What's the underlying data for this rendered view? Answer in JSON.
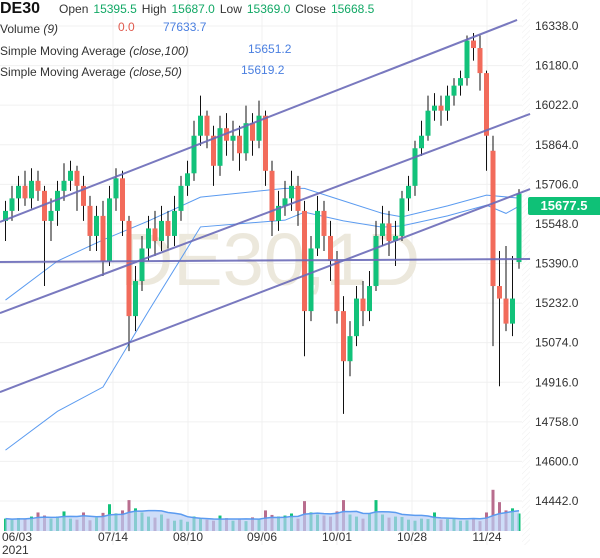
{
  "header": {
    "symbol": "DE30",
    "open_label": "Open",
    "open": "15395.5",
    "high_label": "High",
    "high": "15687.0",
    "low_label": "Low",
    "low": "15369.0",
    "close_label": "Close",
    "close": "15668.5",
    "volume_label": "Volume",
    "volume_param": "(9)",
    "volume_value": "0.0",
    "volume_ma": "77633.7",
    "sma100_label": "Simple Moving Average",
    "sma100_param": "(close,100)",
    "sma100_value": "15651.2",
    "sma50_label": "Simple Moving Average",
    "sma50_param": "(close,50)",
    "sma50_value": "15619.2"
  },
  "watermark": "DE30,1D",
  "current_price": "15677.5",
  "colors": {
    "up": "#12c27a",
    "down": "#f26b5b",
    "vol_down": "#b86d8e",
    "sma": "#5b9bf0",
    "trendline": "#6a6ab8",
    "vol_ma_fill": "#b9cff5",
    "price_tag": "#0fc177"
  },
  "chart_data": {
    "type": "candlestick",
    "ylim": [
      14442,
      16338
    ],
    "yticks": [
      "16338.0",
      "16180.0",
      "16022.0",
      "15864.0",
      "15706.0",
      "15548.0",
      "15390.0",
      "15232.0",
      "15074.0",
      "14916.0",
      "14758.0",
      "14600.0",
      "14442.0"
    ],
    "xticks": [
      "06/03",
      "07/14",
      "08/10",
      "09/06",
      "10/01",
      "10/28",
      "11/24"
    ],
    "xtick_year": "2021",
    "grid": true,
    "ohlc": [
      [
        15560,
        15640,
        15480,
        15600
      ],
      [
        15600,
        15700,
        15560,
        15650
      ],
      [
        15650,
        15740,
        15600,
        15700
      ],
      [
        15700,
        15760,
        15620,
        15650
      ],
      [
        15650,
        15770,
        15610,
        15720
      ],
      [
        15720,
        15760,
        15640,
        15680
      ],
      [
        15680,
        15700,
        15300,
        15560
      ],
      [
        15560,
        15650,
        15480,
        15600
      ],
      [
        15600,
        15720,
        15540,
        15680
      ],
      [
        15680,
        15790,
        15640,
        15720
      ],
      [
        15720,
        15800,
        15680,
        15760
      ],
      [
        15760,
        15780,
        15600,
        15700
      ],
      [
        15700,
        15740,
        15560,
        15620
      ],
      [
        15620,
        15660,
        15440,
        15500
      ],
      [
        15500,
        15620,
        15440,
        15580
      ],
      [
        15580,
        15640,
        15340,
        15400
      ],
      [
        15400,
        15700,
        15380,
        15650
      ],
      [
        15650,
        15770,
        15600,
        15730
      ],
      [
        15730,
        15760,
        15500,
        15560
      ],
      [
        15560,
        15580,
        15040,
        15180
      ],
      [
        15180,
        15380,
        15120,
        15320
      ],
      [
        15320,
        15500,
        15280,
        15450
      ],
      [
        15450,
        15580,
        15400,
        15530
      ],
      [
        15530,
        15600,
        15420,
        15480
      ],
      [
        15480,
        15620,
        15440,
        15560
      ],
      [
        15560,
        15600,
        15450,
        15500
      ],
      [
        15500,
        15660,
        15460,
        15600
      ],
      [
        15600,
        15740,
        15560,
        15700
      ],
      [
        15700,
        15800,
        15660,
        15750
      ],
      [
        15750,
        15960,
        15720,
        15900
      ],
      [
        15900,
        16060,
        15860,
        15980
      ],
      [
        15980,
        16000,
        15850,
        15900
      ],
      [
        15900,
        15940,
        15700,
        15780
      ],
      [
        15780,
        15980,
        15740,
        15930
      ],
      [
        15930,
        15990,
        15820,
        15880
      ],
      [
        15880,
        15960,
        15800,
        15900
      ],
      [
        15900,
        15940,
        15760,
        15830
      ],
      [
        15830,
        16020,
        15800,
        15950
      ],
      [
        15950,
        15990,
        15820,
        15880
      ],
      [
        15880,
        16040,
        15850,
        15980
      ],
      [
        15980,
        16000,
        15700,
        15760
      ],
      [
        15760,
        15800,
        15500,
        15560
      ],
      [
        15560,
        15680,
        15520,
        15620
      ],
      [
        15620,
        15720,
        15580,
        15650
      ],
      [
        15650,
        15760,
        15600,
        15700
      ],
      [
        15700,
        15740,
        15540,
        15600
      ],
      [
        15600,
        15640,
        15020,
        15200
      ],
      [
        15200,
        15500,
        15160,
        15450
      ],
      [
        15450,
        15660,
        15420,
        15600
      ],
      [
        15600,
        15640,
        15440,
        15500
      ],
      [
        15500,
        15560,
        15320,
        15400
      ],
      [
        15400,
        15440,
        15150,
        15200
      ],
      [
        15200,
        15260,
        14790,
        15000
      ],
      [
        15000,
        15160,
        14940,
        15100
      ],
      [
        15100,
        15300,
        15060,
        15250
      ],
      [
        15250,
        15320,
        15140,
        15200
      ],
      [
        15200,
        15360,
        15160,
        15300
      ],
      [
        15300,
        15560,
        15280,
        15500
      ],
      [
        15500,
        15620,
        15460,
        15550
      ],
      [
        15550,
        15600,
        15420,
        15480
      ],
      [
        15480,
        15560,
        15380,
        15500
      ],
      [
        15500,
        15680,
        15480,
        15650
      ],
      [
        15650,
        15740,
        15600,
        15700
      ],
      [
        15700,
        15880,
        15660,
        15850
      ],
      [
        15850,
        15960,
        15820,
        15900
      ],
      [
        15900,
        16060,
        15880,
        16000
      ],
      [
        16000,
        16070,
        15960,
        16020
      ],
      [
        16020,
        16060,
        15940,
        16000
      ],
      [
        16000,
        16100,
        15960,
        16060
      ],
      [
        16060,
        16130,
        16020,
        16100
      ],
      [
        16100,
        16160,
        16060,
        16130
      ],
      [
        16130,
        16300,
        16100,
        16280
      ],
      [
        16280,
        16310,
        16200,
        16250
      ],
      [
        16250,
        16300,
        16080,
        16150
      ],
      [
        16150,
        16160,
        15760,
        15900
      ],
      [
        15840,
        15900,
        15060,
        15300
      ],
      [
        15300,
        15440,
        14900,
        15250
      ],
      [
        15250,
        15460,
        15120,
        15150
      ],
      [
        15150,
        15420,
        15100,
        15250
      ],
      [
        15395.5,
        15687,
        15369,
        15668.5
      ]
    ],
    "volume": [
      60000,
      55000,
      62000,
      58000,
      70000,
      90000,
      75000,
      60000,
      70000,
      95000,
      60000,
      55000,
      90000,
      52000,
      65000,
      88000,
      130000,
      85000,
      100000,
      150000,
      110000,
      90000,
      70000,
      65000,
      80000,
      60000,
      50000,
      55000,
      45000,
      70000,
      60000,
      55000,
      50000,
      75000,
      62000,
      50000,
      58000,
      48000,
      66000,
      56000,
      100000,
      78000,
      70000,
      75000,
      85000,
      60000,
      145000,
      90000,
      80000,
      75000,
      70000,
      95000,
      150000,
      80000,
      70000,
      60000,
      85000,
      150000,
      80000,
      65000,
      70000,
      68000,
      55000,
      50000,
      60000,
      58000,
      90000,
      55000,
      58000,
      60000,
      50000,
      52000,
      62000,
      48000,
      90000,
      200000,
      140000,
      100000,
      110000,
      85000
    ],
    "sma": [
      {
        "name": "Simple Moving Average (close,100)",
        "bars": [
          0,
          8,
          15,
          22,
          30,
          43,
          46,
          52,
          58,
          61,
          68,
          74,
          79
        ],
        "values": [
          15244,
          15400,
          15484,
          15560,
          15655,
          15690,
          15690,
          15640,
          15590,
          15576,
          15620,
          15663,
          15651
        ]
      },
      {
        "name": "Simple Moving Average (close,50)",
        "bars": [
          0,
          8,
          15,
          22,
          30,
          43,
          46,
          52,
          58,
          61,
          68,
          74,
          77,
          79
        ],
        "values": [
          14645,
          14800,
          14897,
          15200,
          15536,
          15563,
          15595,
          15560,
          15535,
          15540,
          15580,
          15623,
          15590,
          15619
        ]
      }
    ],
    "trendlines": [
      {
        "from": {
          "bar": -0.85,
          "price": 15556
        },
        "to": {
          "bar": 78.7,
          "price": 16362
        }
      },
      {
        "from": {
          "bar": -0.85,
          "price": 15192
        },
        "to": {
          "bar": 80.7,
          "price": 15987
        }
      },
      {
        "from": {
          "bar": -0.85,
          "price": 14877
        },
        "to": {
          "bar": 80.7,
          "price": 15687
        }
      },
      {
        "from": {
          "bar": -0.85,
          "price": 15396
        },
        "to": {
          "bar": 80.7,
          "price": 15408
        }
      }
    ]
  }
}
